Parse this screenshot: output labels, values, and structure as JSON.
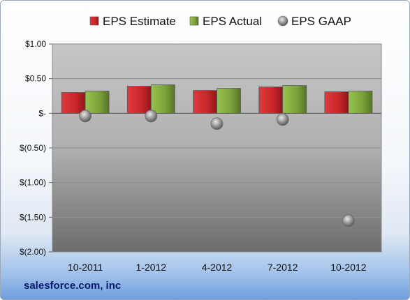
{
  "caption": "salesforce.com, inc",
  "chart_data": {
    "type": "bar",
    "categories": [
      "10-2011",
      "1-2012",
      "4-2012",
      "7-2012",
      "10-2012"
    ],
    "series": [
      {
        "name": "EPS Estimate",
        "kind": "bar",
        "color": "#c8262a",
        "values": [
          0.3,
          0.39,
          0.33,
          0.38,
          0.31
        ]
      },
      {
        "name": "EPS Actual",
        "kind": "bar",
        "color": "#7aa23a",
        "values": [
          0.32,
          0.41,
          0.36,
          0.4,
          0.32
        ]
      },
      {
        "name": "EPS GAAP",
        "kind": "marker",
        "color": "#9a9a9a",
        "values": [
          -0.04,
          -0.04,
          -0.15,
          -0.09,
          -1.55
        ]
      }
    ],
    "y_ticks": [
      "$1.00",
      "$0.50",
      "$-",
      "$(0.50)",
      "$(1.00)",
      "$(1.50)",
      "$(2.00)"
    ],
    "ylim": [
      -2.0,
      1.0
    ],
    "legend_position": "top",
    "grid": true
  }
}
